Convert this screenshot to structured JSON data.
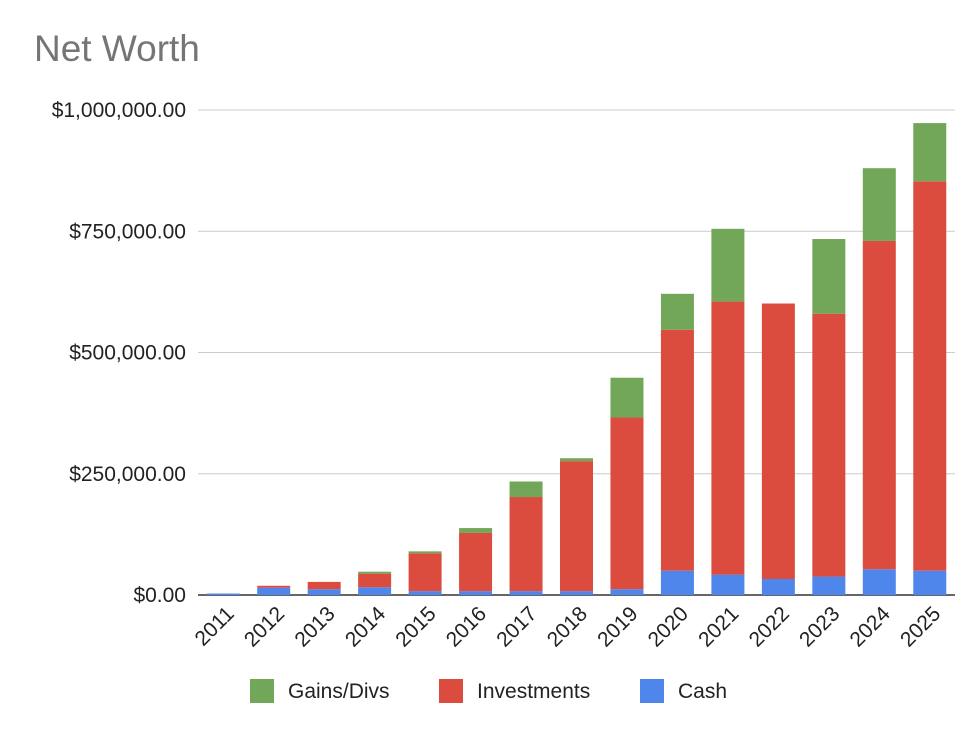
{
  "chart_data": {
    "type": "bar",
    "stacked": true,
    "title": "Net Worth",
    "xlabel": "",
    "ylabel": "",
    "categories": [
      "2011",
      "2012",
      "2013",
      "2014",
      "2015",
      "2016",
      "2017",
      "2018",
      "2019",
      "2020",
      "2021",
      "2022",
      "2023",
      "2024",
      "2025"
    ],
    "series": [
      {
        "name": "Cash",
        "color": "#4f86ec",
        "values": [
          3000,
          15000,
          12000,
          16000,
          8000,
          8000,
          8000,
          8000,
          12000,
          50000,
          42000,
          33000,
          38000,
          53000,
          50000
        ]
      },
      {
        "name": "Investments",
        "color": "#db4c3f",
        "values": [
          0,
          4000,
          15000,
          28000,
          78000,
          120000,
          194000,
          268000,
          354000,
          497000,
          563000,
          568000,
          542000,
          677000,
          803000
        ]
      },
      {
        "name": "Gains/Divs",
        "color": "#72a75a",
        "values": [
          0,
          0,
          0,
          4000,
          4000,
          10000,
          32000,
          6000,
          82000,
          74000,
          150000,
          0,
          154000,
          150000,
          120000
        ]
      }
    ],
    "legend_order": [
      "Gains/Divs",
      "Investments",
      "Cash"
    ],
    "legend_position": "bottom",
    "ylim": [
      0,
      1000000
    ],
    "yticks": [
      0,
      250000,
      500000,
      750000,
      1000000
    ],
    "ytick_labels": [
      "$0.00",
      "$250,000.00",
      "$500,000.00",
      "$750,000.00",
      "$1,000,000.00"
    ],
    "grid": true
  }
}
